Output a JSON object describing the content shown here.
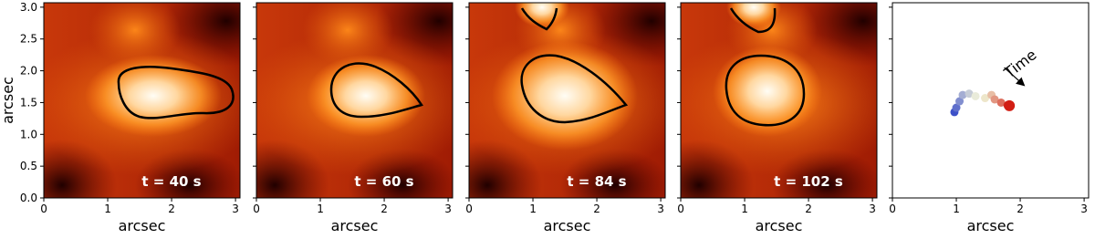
{
  "chart_data": [
    {
      "type": "image",
      "annotation": "t = 40 s",
      "xlabel": "arcsec",
      "ylabel": "arcsec",
      "xlim": [
        0,
        3.07
      ],
      "ylim": [
        0,
        3.07
      ],
      "xticks": [
        0,
        1,
        2,
        3
      ],
      "yticks": [
        {
          "value": 0,
          "label": "0.0"
        },
        {
          "value": 0.5,
          "label": "0.5"
        },
        {
          "value": 1,
          "label": "1.0"
        },
        {
          "value": 1.5,
          "label": "1.5"
        },
        {
          "value": 2,
          "label": "2.0"
        },
        {
          "value": 2.5,
          "label": "2.5"
        },
        {
          "value": 3,
          "label": "3.0"
        }
      ]
    },
    {
      "type": "image",
      "annotation": "t = 60 s",
      "xlabel": "arcsec",
      "xlim": [
        0,
        3.07
      ],
      "ylim": [
        0,
        3.07
      ],
      "xticks": [
        0,
        1,
        2,
        3
      ]
    },
    {
      "type": "image",
      "annotation": "t = 84 s",
      "xlabel": "arcsec",
      "xlim": [
        0,
        3.07
      ],
      "ylim": [
        0,
        3.07
      ],
      "xticks": [
        0,
        1,
        2,
        3
      ]
    },
    {
      "type": "image",
      "annotation": "t = 102 s",
      "xlabel": "arcsec",
      "xlim": [
        0,
        3.07
      ],
      "ylim": [
        0,
        3.07
      ],
      "xticks": [
        0,
        1,
        2,
        3
      ]
    },
    {
      "type": "scatter",
      "annotation": "Time",
      "xlabel": "arcsec",
      "xlim": [
        0,
        3.07
      ],
      "ylim": [
        0,
        3.07
      ],
      "xticks": [
        0,
        1,
        2,
        3
      ],
      "x": [
        0.97,
        1.0,
        1.05,
        1.1,
        1.2,
        1.3,
        1.45,
        1.55,
        1.6,
        1.7,
        1.8,
        1.83
      ],
      "y": [
        1.35,
        1.42,
        1.52,
        1.62,
        1.64,
        1.6,
        1.57,
        1.62,
        1.55,
        1.5,
        1.46,
        1.45
      ]
    }
  ]
}
